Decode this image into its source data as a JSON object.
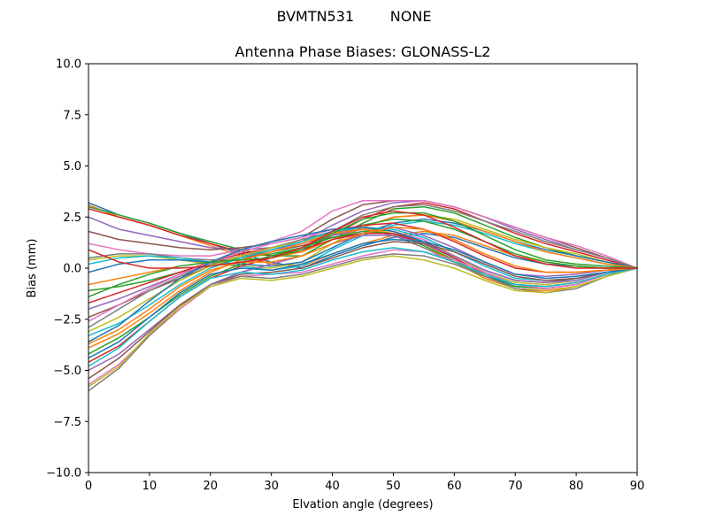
{
  "figure": {
    "suptitle": "BVMTN531        NONE"
  },
  "chart_data": {
    "type": "line",
    "title": "Antenna Phase Biases: GLONASS-L2",
    "xlabel": "Elvation angle (degrees)",
    "ylabel": "Bias (mm)",
    "xlim": [
      0,
      90
    ],
    "ylim": [
      -10.0,
      10.0
    ],
    "x_ticks": [
      "0",
      "10",
      "20",
      "30",
      "40",
      "50",
      "60",
      "70",
      "80",
      "90"
    ],
    "y_ticks": [
      "10.0",
      "7.5",
      "5.0",
      "2.5",
      "0.0",
      "−2.5",
      "−5.0",
      "−7.5",
      "−10.0"
    ],
    "grid": false,
    "x": [
      0,
      5,
      10,
      15,
      20,
      25,
      30,
      35,
      40,
      45,
      50,
      55,
      60,
      65,
      70,
      75,
      80,
      85,
      90
    ],
    "series_colors": [
      "#1f77b4",
      "#ff7f0e",
      "#2ca02c",
      "#d62728",
      "#9467bd",
      "#8c564b",
      "#e377c2",
      "#7f7f7f",
      "#bcbd22",
      "#17becf"
    ],
    "series": [
      {
        "values": [
          3.2,
          2.6,
          2.2,
          1.7,
          1.2,
          0.7,
          0.3,
          0.0,
          0.6,
          1.1,
          1.5,
          1.7,
          1.5,
          1.0,
          0.5,
          0.2,
          0.1,
          0.0,
          0.0
        ]
      },
      {
        "values": [
          3.1,
          2.5,
          2.1,
          1.6,
          1.1,
          0.6,
          0.2,
          0.1,
          0.7,
          1.2,
          1.6,
          1.8,
          1.6,
          1.1,
          0.6,
          0.3,
          0.1,
          0.0,
          0.0
        ]
      },
      {
        "values": [
          3.0,
          2.6,
          2.2,
          1.7,
          1.3,
          0.9,
          0.6,
          0.6,
          1.4,
          2.2,
          2.9,
          3.0,
          2.7,
          2.1,
          1.5,
          1.0,
          0.6,
          0.3,
          0.0
        ]
      },
      {
        "values": [
          2.9,
          2.5,
          2.1,
          1.6,
          1.2,
          0.8,
          0.6,
          0.8,
          1.6,
          2.4,
          3.0,
          3.2,
          2.9,
          2.3,
          1.7,
          1.2,
          0.8,
          0.4,
          0.0
        ]
      },
      {
        "values": [
          2.5,
          1.9,
          1.6,
          1.3,
          1.0,
          0.9,
          1.0,
          1.3,
          2.1,
          2.8,
          3.2,
          3.3,
          3.0,
          2.5,
          1.9,
          1.4,
          0.9,
          0.5,
          0.0
        ]
      },
      {
        "values": [
          1.8,
          1.4,
          1.2,
          1.0,
          0.9,
          1.0,
          1.2,
          1.5,
          2.4,
          3.1,
          3.3,
          3.3,
          3.0,
          2.5,
          2.0,
          1.5,
          1.0,
          0.5,
          0.0
        ]
      },
      {
        "values": [
          1.2,
          0.9,
          0.7,
          0.6,
          0.6,
          0.9,
          1.3,
          1.8,
          2.8,
          3.3,
          3.3,
          3.3,
          3.0,
          2.5,
          2.0,
          1.5,
          1.1,
          0.6,
          0.0
        ]
      },
      {
        "values": [
          0.5,
          0.7,
          0.7,
          0.5,
          0.4,
          0.4,
          0.5,
          0.9,
          1.8,
          2.6,
          3.0,
          3.1,
          2.8,
          2.3,
          1.8,
          1.3,
          0.9,
          0.5,
          0.0
        ]
      },
      {
        "values": [
          0.4,
          0.6,
          0.6,
          0.4,
          0.2,
          0.1,
          0.0,
          0.3,
          1.2,
          2.0,
          2.5,
          2.6,
          2.4,
          1.9,
          1.4,
          1.0,
          0.7,
          0.3,
          0.0
        ]
      },
      {
        "values": [
          0.2,
          0.5,
          0.6,
          0.5,
          0.3,
          0.1,
          -0.1,
          0.1,
          0.9,
          1.6,
          2.1,
          2.3,
          2.1,
          1.7,
          1.2,
          0.8,
          0.5,
          0.2,
          0.0
        ]
      },
      {
        "values": [
          -0.2,
          0.2,
          0.4,
          0.4,
          0.3,
          0.2,
          0.1,
          0.3,
          1.0,
          1.7,
          2.2,
          2.4,
          2.2,
          1.8,
          1.3,
          0.9,
          0.6,
          0.3,
          0.0
        ]
      },
      {
        "values": [
          -0.8,
          -0.5,
          -0.2,
          0.1,
          0.3,
          0.4,
          0.5,
          0.8,
          1.4,
          2.0,
          2.5,
          2.6,
          2.3,
          1.8,
          1.3,
          0.8,
          0.5,
          0.2,
          0.0
        ]
      },
      {
        "values": [
          -1.1,
          -0.9,
          -0.6,
          -0.2,
          0.2,
          0.5,
          0.7,
          1.0,
          1.6,
          2.1,
          2.4,
          2.3,
          1.9,
          1.3,
          0.7,
          0.3,
          0.1,
          0.0,
          0.0
        ]
      },
      {
        "values": [
          -1.7,
          -1.2,
          -0.7,
          -0.2,
          0.3,
          0.7,
          1.0,
          1.3,
          1.8,
          2.1,
          2.2,
          1.9,
          1.3,
          0.6,
          0.0,
          -0.2,
          -0.2,
          -0.1,
          0.0
        ]
      },
      {
        "values": [
          -2.0,
          -1.5,
          -0.9,
          -0.3,
          0.2,
          0.6,
          0.9,
          1.2,
          1.6,
          1.9,
          2.0,
          1.6,
          1.0,
          0.3,
          -0.3,
          -0.4,
          -0.3,
          -0.1,
          0.0
        ]
      },
      {
        "values": [
          -2.4,
          -1.8,
          -1.1,
          -0.5,
          0.1,
          0.5,
          0.8,
          1.1,
          1.5,
          1.7,
          1.7,
          1.3,
          0.6,
          -0.1,
          -0.6,
          -0.7,
          -0.5,
          -0.2,
          0.0
        ]
      },
      {
        "values": [
          -2.6,
          -1.8,
          -1.0,
          -0.3,
          0.3,
          0.8,
          1.2,
          1.5,
          1.9,
          2.0,
          1.8,
          1.4,
          0.6,
          -0.2,
          -0.8,
          -0.9,
          -0.7,
          -0.3,
          0.0
        ]
      },
      {
        "values": [
          -2.9,
          -2.0,
          -1.1,
          -0.4,
          0.2,
          0.6,
          1.0,
          1.4,
          1.8,
          1.9,
          1.6,
          1.0,
          0.3,
          -0.4,
          -0.9,
          -1.0,
          -0.8,
          -0.3,
          0.0
        ]
      },
      {
        "values": [
          -3.1,
          -2.4,
          -1.5,
          -0.6,
          0.1,
          0.6,
          1.0,
          1.3,
          1.7,
          1.9,
          1.8,
          1.3,
          0.6,
          -0.2,
          -0.7,
          -0.8,
          -0.6,
          -0.2,
          0.0
        ]
      },
      {
        "values": [
          -3.3,
          -2.7,
          -1.8,
          -0.8,
          0.0,
          0.5,
          0.9,
          1.3,
          1.8,
          2.0,
          1.9,
          1.5,
          0.8,
          0.1,
          -0.5,
          -0.6,
          -0.5,
          -0.2,
          0.0
        ]
      },
      {
        "values": [
          -3.6,
          -2.8,
          -1.6,
          -0.5,
          0.3,
          0.9,
          1.3,
          1.6,
          1.9,
          2.0,
          1.8,
          1.3,
          0.5,
          -0.3,
          -0.9,
          -1.0,
          -0.8,
          -0.3,
          0.0
        ]
      },
      {
        "values": [
          -3.9,
          -3.2,
          -2.2,
          -1.1,
          -0.2,
          0.4,
          0.8,
          1.2,
          1.7,
          1.9,
          1.7,
          1.1,
          0.3,
          -0.5,
          -1.0,
          -1.1,
          -0.9,
          -0.4,
          0.0
        ]
      },
      {
        "values": [
          -4.2,
          -3.4,
          -2.4,
          -1.3,
          -0.4,
          0.2,
          0.6,
          1.0,
          1.5,
          1.8,
          1.7,
          1.1,
          0.4,
          -0.4,
          -0.9,
          -1.0,
          -0.8,
          -0.3,
          0.0
        ]
      },
      {
        "values": [
          -4.6,
          -3.8,
          -2.6,
          -1.4,
          -0.5,
          0.1,
          0.5,
          0.9,
          1.4,
          1.7,
          1.7,
          1.2,
          0.5,
          -0.3,
          -0.8,
          -0.9,
          -0.7,
          -0.3,
          0.0
        ]
      },
      {
        "values": [
          -5.0,
          -4.2,
          -3.0,
          -1.8,
          -0.8,
          -0.2,
          0.2,
          0.6,
          1.2,
          1.6,
          1.6,
          1.2,
          0.6,
          -0.1,
          -0.6,
          -0.7,
          -0.6,
          -0.2,
          0.0
        ]
      },
      {
        "values": [
          -5.4,
          -4.4,
          -3.1,
          -1.8,
          -0.8,
          -0.3,
          -0.2,
          0.0,
          0.5,
          1.0,
          1.3,
          1.2,
          0.8,
          0.2,
          -0.4,
          -0.6,
          -0.5,
          -0.2,
          0.0
        ]
      },
      {
        "values": [
          -5.7,
          -4.7,
          -3.3,
          -2.0,
          -0.9,
          -0.4,
          -0.3,
          -0.2,
          0.2,
          0.6,
          0.9,
          0.8,
          0.4,
          -0.2,
          -0.8,
          -1.0,
          -0.8,
          -0.3,
          0.0
        ]
      },
      {
        "values": [
          -6.0,
          -4.9,
          -3.3,
          -1.9,
          -0.8,
          -0.4,
          -0.5,
          -0.3,
          0.1,
          0.5,
          0.7,
          0.6,
          0.2,
          -0.4,
          -1.0,
          -1.2,
          -1.0,
          -0.4,
          0.0
        ]
      },
      {
        "values": [
          -5.8,
          -4.8,
          -3.2,
          -1.9,
          -0.9,
          -0.5,
          -0.6,
          -0.4,
          0.0,
          0.4,
          0.6,
          0.4,
          0.0,
          -0.6,
          -1.1,
          -1.2,
          -0.9,
          -0.4,
          0.0
        ]
      },
      {
        "values": [
          -4.8,
          -3.9,
          -2.6,
          -1.4,
          -0.5,
          -0.2,
          -0.3,
          -0.1,
          0.4,
          0.8,
          1.0,
          0.8,
          0.3,
          -0.3,
          -0.8,
          -0.9,
          -0.7,
          -0.3,
          0.0
        ]
      },
      {
        "values": [
          -4.4,
          -3.6,
          -2.4,
          -1.2,
          -0.3,
          0.0,
          -0.1,
          0.2,
          0.7,
          1.2,
          1.4,
          1.3,
          0.9,
          0.3,
          -0.3,
          -0.5,
          -0.4,
          -0.2,
          0.0
        ]
      },
      {
        "values": [
          -3.7,
          -3.0,
          -2.0,
          -0.9,
          -0.1,
          0.3,
          0.3,
          0.6,
          1.2,
          1.7,
          2.0,
          1.9,
          1.4,
          0.7,
          0.1,
          -0.2,
          -0.2,
          -0.1,
          0.0
        ]
      },
      {
        "values": [
          -1.4,
          -0.8,
          -0.3,
          0.1,
          0.3,
          0.4,
          0.5,
          0.9,
          1.7,
          2.4,
          2.7,
          2.7,
          2.3,
          1.6,
          0.9,
          0.4,
          0.2,
          0.1,
          0.0
        ]
      },
      {
        "values": [
          0.9,
          0.3,
          0.0,
          0.0,
          0.1,
          0.3,
          0.5,
          1.0,
          1.8,
          2.5,
          2.8,
          2.6,
          2.0,
          1.3,
          0.6,
          0.2,
          0.0,
          0.0,
          0.0
        ]
      }
    ]
  }
}
